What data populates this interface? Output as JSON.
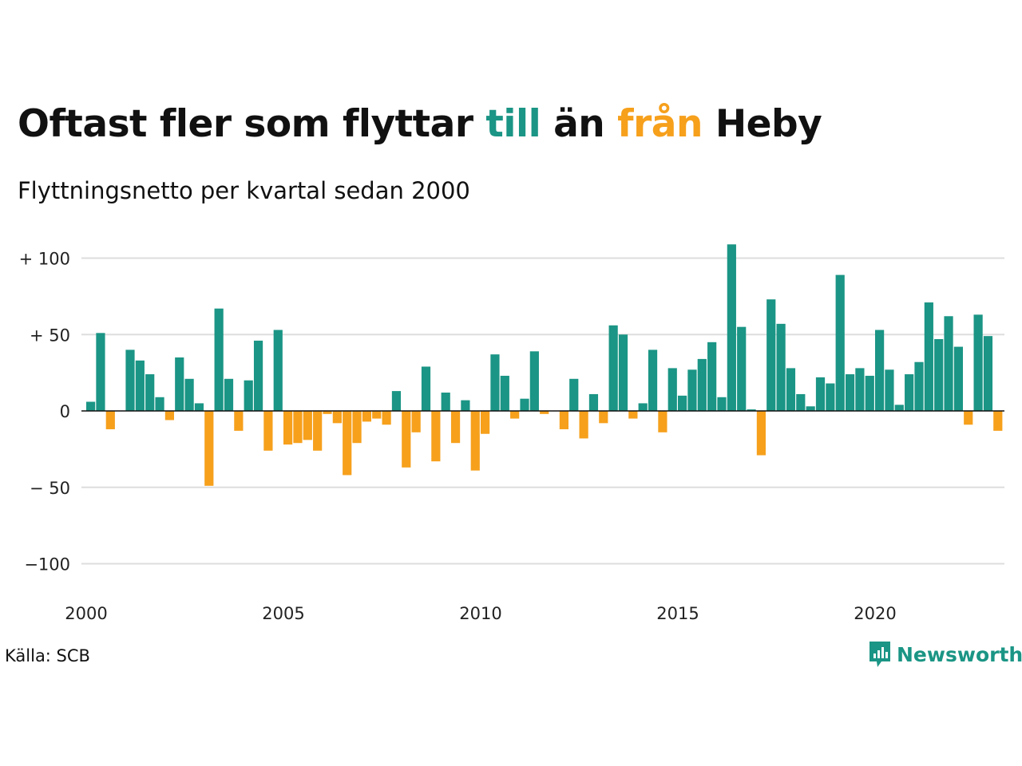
{
  "title": {
    "part1": "Oftast fler som flyttar",
    "highlight_to": "till",
    "part2": "än",
    "highlight_from": "från",
    "part3": "Heby"
  },
  "subtitle": "Flyttningsnetto per kvartal sedan 2000",
  "source": "Källa: SCB",
  "brand": {
    "name": "Newsworthy",
    "icon": "newsworthy-logo-icon"
  },
  "colors": {
    "positive": "#1b9585",
    "negative": "#f6a01c",
    "grid": "#dddddd",
    "text": "#111111"
  },
  "chart_data": {
    "type": "bar",
    "title": "Oftast fler som flyttar till än från Heby",
    "subtitle": "Flyttningsnetto per kvartal sedan 2000",
    "xlabel": "",
    "ylabel": "",
    "ylim": [
      -120,
      110
    ],
    "yticks": [
      100,
      50,
      0,
      -50,
      -100
    ],
    "ytick_labels": [
      "+ 100",
      "+  50",
      "0",
      "− 50",
      "−100"
    ],
    "xticks": [
      "2000",
      "2005",
      "2010",
      "2015",
      "2020"
    ],
    "grid": true,
    "start": "2000 Q1",
    "values": [
      6,
      51,
      -12,
      0,
      40,
      33,
      24,
      9,
      -6,
      35,
      21,
      5,
      -49,
      67,
      21,
      -13,
      20,
      46,
      -26,
      53,
      -22,
      -21,
      -19,
      -26,
      -2,
      -8,
      -42,
      -21,
      -7,
      -5,
      -9,
      13,
      -37,
      -14,
      29,
      -33,
      12,
      -21,
      7,
      -39,
      -15,
      37,
      23,
      -5,
      8,
      39,
      -2,
      0,
      -12,
      21,
      -18,
      11,
      -8,
      56,
      50,
      -5,
      5,
      40,
      -14,
      28,
      10,
      27,
      34,
      45,
      9,
      109,
      55,
      1,
      -29,
      73,
      57,
      28,
      11,
      3,
      22,
      18,
      89,
      24,
      28,
      23,
      53,
      27,
      4,
      24,
      32,
      71,
      47,
      62,
      42,
      -9,
      63,
      49,
      -13
    ]
  }
}
